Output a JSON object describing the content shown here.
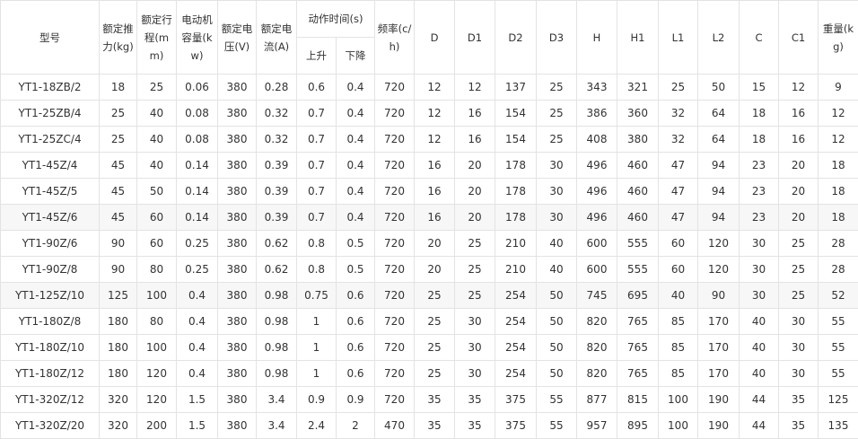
{
  "table": {
    "header": {
      "row1": [
        "型号",
        "额定推力(kg)",
        "额定行程(mm)",
        "电动机容量(kw)",
        "额定电压(V)",
        "额定电流(A)",
        "动作时间(s)",
        "频率(c/h)",
        "D",
        "D1",
        "D2",
        "D3",
        "H",
        "H1",
        "L1",
        "L2",
        "C",
        "C1",
        "重量(kg)"
      ],
      "row2": [
        "上升",
        "下降"
      ]
    },
    "rows": [
      [
        "YT1-18ZB/2",
        "18",
        "25",
        "0.06",
        "380",
        "0.28",
        "0.6",
        "0.4",
        "720",
        "12",
        "12",
        "137",
        "25",
        "343",
        "321",
        "25",
        "50",
        "15",
        "12",
        "9"
      ],
      [
        "YT1-25ZB/4",
        "25",
        "40",
        "0.08",
        "380",
        "0.32",
        "0.7",
        "0.4",
        "720",
        "12",
        "16",
        "154",
        "25",
        "386",
        "360",
        "32",
        "64",
        "18",
        "16",
        "12"
      ],
      [
        "YT1-25ZC/4",
        "25",
        "40",
        "0.08",
        "380",
        "0.32",
        "0.7",
        "0.4",
        "720",
        "12",
        "16",
        "154",
        "25",
        "408",
        "380",
        "32",
        "64",
        "18",
        "16",
        "12"
      ],
      [
        "YT1-45Z/4",
        "45",
        "40",
        "0.14",
        "380",
        "0.39",
        "0.7",
        "0.4",
        "720",
        "16",
        "20",
        "178",
        "30",
        "496",
        "460",
        "47",
        "94",
        "23",
        "20",
        "18"
      ],
      [
        "YT1-45Z/5",
        "45",
        "50",
        "0.14",
        "380",
        "0.39",
        "0.7",
        "0.4",
        "720",
        "16",
        "20",
        "178",
        "30",
        "496",
        "460",
        "47",
        "94",
        "23",
        "20",
        "18"
      ],
      [
        "YT1-45Z/6",
        "45",
        "60",
        "0.14",
        "380",
        "0.39",
        "0.7",
        "0.4",
        "720",
        "16",
        "20",
        "178",
        "30",
        "496",
        "460",
        "47",
        "94",
        "23",
        "20",
        "18"
      ],
      [
        "YT1-90Z/6",
        "90",
        "60",
        "0.25",
        "380",
        "0.62",
        "0.8",
        "0.5",
        "720",
        "20",
        "25",
        "210",
        "40",
        "600",
        "555",
        "60",
        "120",
        "30",
        "25",
        "28"
      ],
      [
        "YT1-90Z/8",
        "90",
        "80",
        "0.25",
        "380",
        "0.62",
        "0.8",
        "0.5",
        "720",
        "20",
        "25",
        "210",
        "40",
        "600",
        "555",
        "60",
        "120",
        "30",
        "25",
        "28"
      ],
      [
        "YT1-125Z/10",
        "125",
        "100",
        "0.4",
        "380",
        "0.98",
        "0.75",
        "0.6",
        "720",
        "25",
        "25",
        "254",
        "50",
        "745",
        "695",
        "40",
        "90",
        "30",
        "25",
        "52"
      ],
      [
        "YT1-180Z/8",
        "180",
        "80",
        "0.4",
        "380",
        "0.98",
        "1",
        "0.6",
        "720",
        "25",
        "30",
        "254",
        "50",
        "820",
        "765",
        "85",
        "170",
        "40",
        "30",
        "55"
      ],
      [
        "YT1-180Z/10",
        "180",
        "100",
        "0.4",
        "380",
        "0.98",
        "1",
        "0.6",
        "720",
        "25",
        "30",
        "254",
        "50",
        "820",
        "765",
        "85",
        "170",
        "40",
        "30",
        "55"
      ],
      [
        "YT1-180Z/12",
        "180",
        "120",
        "0.4",
        "380",
        "0.98",
        "1",
        "0.6",
        "720",
        "25",
        "30",
        "254",
        "50",
        "820",
        "765",
        "85",
        "170",
        "40",
        "30",
        "55"
      ],
      [
        "YT1-320Z/12",
        "320",
        "120",
        "1.5",
        "380",
        "3.4",
        "0.9",
        "0.9",
        "720",
        "35",
        "35",
        "375",
        "55",
        "877",
        "815",
        "100",
        "190",
        "44",
        "35",
        "125"
      ],
      [
        "YT1-320Z/20",
        "320",
        "200",
        "1.5",
        "380",
        "3.4",
        "2.4",
        "2",
        "470",
        "35",
        "35",
        "375",
        "55",
        "957",
        "895",
        "100",
        "190",
        "44",
        "35",
        "135"
      ]
    ]
  }
}
